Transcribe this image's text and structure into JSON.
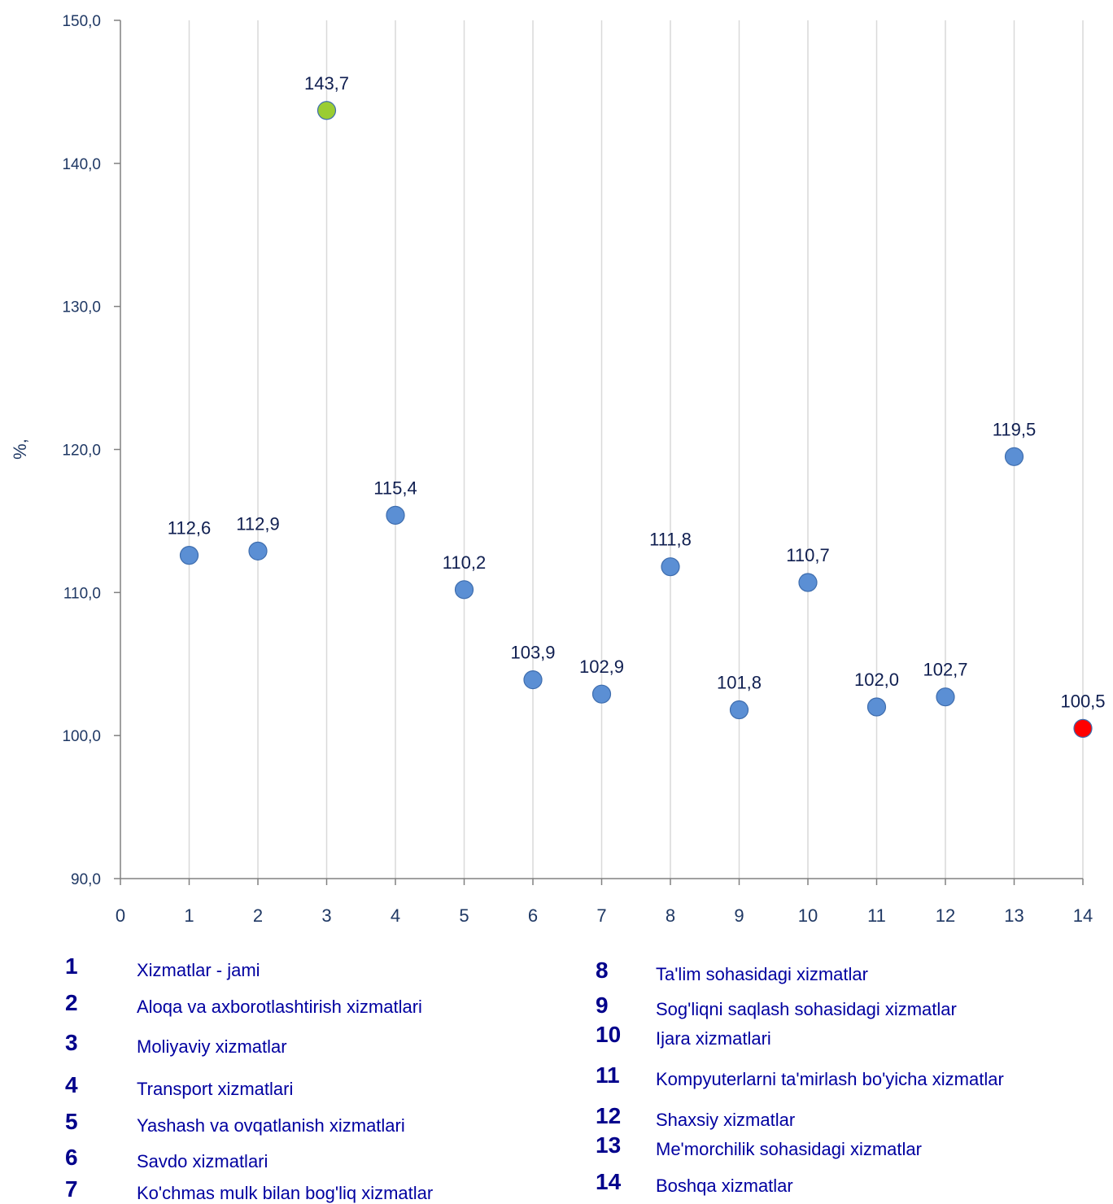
{
  "chart_data": {
    "type": "scatter",
    "ylabel": "%,",
    "xlim": [
      0,
      14
    ],
    "ylim": [
      90,
      150
    ],
    "x_ticks": [
      "0",
      "1",
      "2",
      "3",
      "4",
      "5",
      "6",
      "7",
      "8",
      "9",
      "10",
      "11",
      "12",
      "13",
      "14"
    ],
    "y_ticks": [
      "90,0",
      "100,0",
      "110,0",
      "120,0",
      "130,0",
      "140,0",
      "150,0"
    ],
    "grid": "vertical",
    "points": [
      {
        "x": 1,
        "y": 112.6,
        "label": "112,6",
        "color": "#5B8FD4"
      },
      {
        "x": 2,
        "y": 112.9,
        "label": "112,9",
        "color": "#5B8FD4"
      },
      {
        "x": 3,
        "y": 143.7,
        "label": "143,7",
        "color": "#9ACD32"
      },
      {
        "x": 4,
        "y": 115.4,
        "label": "115,4",
        "color": "#5B8FD4"
      },
      {
        "x": 5,
        "y": 110.2,
        "label": "110,2",
        "color": "#5B8FD4"
      },
      {
        "x": 6,
        "y": 103.9,
        "label": "103,9",
        "color": "#5B8FD4"
      },
      {
        "x": 7,
        "y": 102.9,
        "label": "102,9",
        "color": "#5B8FD4"
      },
      {
        "x": 8,
        "y": 111.8,
        "label": "111,8",
        "color": "#5B8FD4"
      },
      {
        "x": 9,
        "y": 101.8,
        "label": "101,8",
        "color": "#5B8FD4"
      },
      {
        "x": 10,
        "y": 110.7,
        "label": "110,7",
        "color": "#5B8FD4"
      },
      {
        "x": 11,
        "y": 102.0,
        "label": "102,0",
        "color": "#5B8FD4"
      },
      {
        "x": 12,
        "y": 102.7,
        "label": "102,7",
        "color": "#5B8FD4"
      },
      {
        "x": 13,
        "y": 119.5,
        "label": "119,5",
        "color": "#5B8FD4"
      },
      {
        "x": 14,
        "y": 100.5,
        "label": "100,5",
        "color": "#FF0000"
      }
    ]
  },
  "legend": [
    {
      "num": "1",
      "label": "Xizmatlar - jami"
    },
    {
      "num": "2",
      "label": "Aloqa va axborotlashtirish xizmatlari"
    },
    {
      "num": "3",
      "label": "Moliyaviy xizmatlar"
    },
    {
      "num": "4",
      "label": "Transport xizmatlari"
    },
    {
      "num": "5",
      "label": "Yashash va ovqatlanish xizmatlari"
    },
    {
      "num": "6",
      "label": "Savdo xizmatlari"
    },
    {
      "num": "7",
      "label": "Ko'chmas mulk bilan bog'liq xizmatlar"
    },
    {
      "num": "8",
      "label": "Ta'lim sohasidagi xizmatlar"
    },
    {
      "num": "9",
      "label": "Sog'liqni saqlash sohasidagi xizmatlar"
    },
    {
      "num": "10",
      "label": "Ijara xizmatlari"
    },
    {
      "num": "11",
      "label": "Kompyuterlarni ta'mirlash bo'yicha xizmatlar"
    },
    {
      "num": "12",
      "label": "Shaxsiy xizmatlar"
    },
    {
      "num": "13",
      "label": "Me'morchilik sohasidagi xizmatlar"
    },
    {
      "num": "14",
      "label": "Boshqa xizmatlar"
    }
  ],
  "colors": {
    "axis_text": "#1F3864",
    "label_text": "#0F1E50",
    "legend_num": "#00008B",
    "legend_text": "#0000A0",
    "grid": "#D9D9D9",
    "axis": "#808080"
  }
}
